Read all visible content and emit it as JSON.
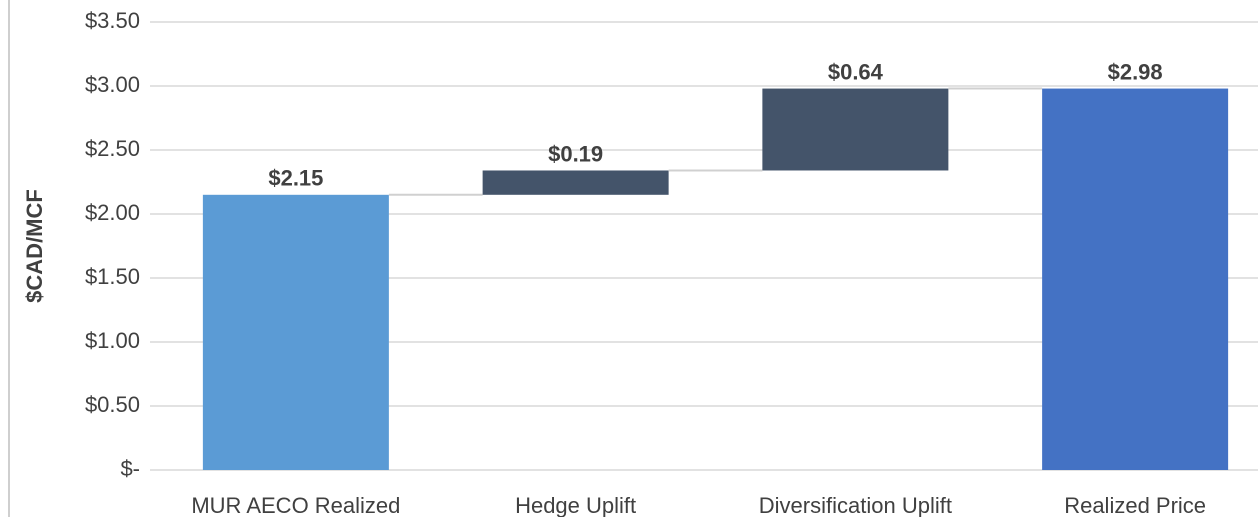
{
  "chart_data": {
    "type": "waterfall",
    "y_axis_label": "$CAD/MCF",
    "categories": [
      "MUR AECO Realized",
      "Hedge Uplift",
      "Diversification Uplift",
      "Realized Price"
    ],
    "values": [
      2.15,
      0.19,
      0.64,
      2.98
    ],
    "value_labels": [
      "$2.15",
      "$0.19",
      "$0.64",
      "$2.98"
    ],
    "measure": [
      "absolute",
      "relative",
      "relative",
      "total"
    ],
    "colors": [
      "#5b9bd5",
      "#44546a",
      "#44546a",
      "#4472c4"
    ],
    "ylim": [
      0,
      3.5
    ],
    "yticks": [
      {
        "value": 0,
        "label": "$-"
      },
      {
        "value": 0.5,
        "label": "$0.50"
      },
      {
        "value": 1,
        "label": "$1.00"
      },
      {
        "value": 1.5,
        "label": "$1.50"
      },
      {
        "value": 2,
        "label": "$2.00"
      },
      {
        "value": 2.5,
        "label": "$2.50"
      },
      {
        "value": 3,
        "label": "$3.00"
      },
      {
        "value": 3.5,
        "label": "$3.50"
      }
    ],
    "grid": true
  }
}
